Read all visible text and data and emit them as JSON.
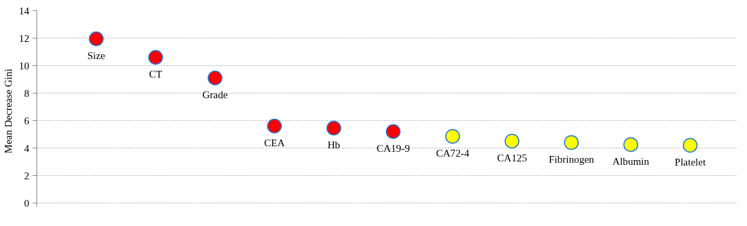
{
  "chart_data": {
    "type": "scatter",
    "ylabel": "Mean  Decrease  Gini",
    "categories": [
      "Size",
      "CT",
      "Grade",
      "CEA",
      "Hb",
      "CA19-9",
      "CA72-4",
      "CA125",
      "Fibrinogen",
      "Albumin",
      "Platelet"
    ],
    "values": [
      11.95,
      10.6,
      9.1,
      5.6,
      5.45,
      5.2,
      4.85,
      4.5,
      4.4,
      4.25,
      4.2
    ],
    "colors": [
      "#ff0000",
      "#ff0000",
      "#ff0000",
      "#ff0000",
      "#ff0000",
      "#ff0000",
      "#ffff00",
      "#ffff00",
      "#ffff00",
      "#ffff00",
      "#ffff00"
    ],
    "ylim": [
      0,
      14
    ],
    "yticks": [
      0,
      2,
      4,
      6,
      8,
      10,
      12,
      14
    ],
    "grid": "y",
    "marker": "circle",
    "tick_labels": "y"
  }
}
